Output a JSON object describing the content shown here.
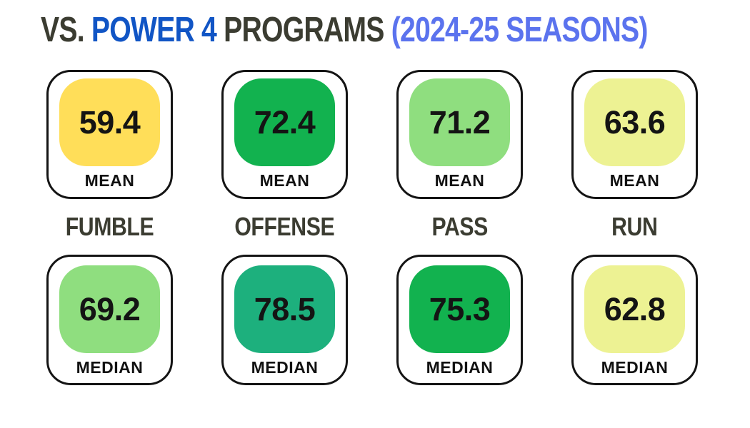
{
  "title": {
    "part1": {
      "text": "VS. ",
      "color": "#3B3C31"
    },
    "part2": {
      "text": "POWER 4 ",
      "color": "#1155C5"
    },
    "part3": {
      "text": "PROGRAMS ",
      "color": "#3B3C31"
    },
    "part4": {
      "text": "(2024-25 SEASONS)",
      "color": "#5B73EE"
    }
  },
  "columns": [
    {
      "category": "FUMBLE",
      "mean": {
        "value": "59.4",
        "label": "MEAN",
        "color": "#FFDE59"
      },
      "median": {
        "value": "69.2",
        "label": "MEDIAN",
        "color": "#8FDE7F"
      }
    },
    {
      "category": "OFFENSE",
      "mean": {
        "value": "72.4",
        "label": "MEAN",
        "color": "#12B24F"
      },
      "median": {
        "value": "78.5",
        "label": "MEDIAN",
        "color": "#1DB07D"
      }
    },
    {
      "category": "PASS",
      "mean": {
        "value": "71.2",
        "label": "MEAN",
        "color": "#8FDE7F"
      },
      "median": {
        "value": "75.3",
        "label": "MEDIAN",
        "color": "#12B24F"
      }
    },
    {
      "category": "RUN",
      "mean": {
        "value": "63.6",
        "label": "MEAN",
        "color": "#EDF293"
      },
      "median": {
        "value": "62.8",
        "label": "MEDIAN",
        "color": "#EDF293"
      }
    }
  ],
  "chart_data": {
    "type": "table",
    "title": "VS. POWER 4 PROGRAMS (2024-25 SEASONS)",
    "categories": [
      "FUMBLE",
      "OFFENSE",
      "PASS",
      "RUN"
    ],
    "series": [
      {
        "name": "MEAN",
        "values": [
          59.4,
          72.4,
          71.2,
          63.6
        ]
      },
      {
        "name": "MEDIAN",
        "values": [
          69.2,
          78.5,
          75.3,
          62.8
        ]
      }
    ],
    "legend_position": "none",
    "grid": false
  }
}
